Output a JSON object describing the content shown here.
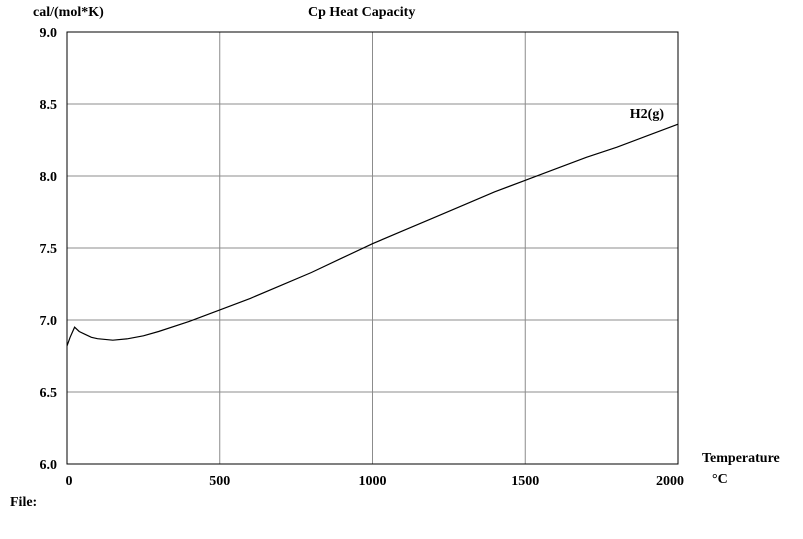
{
  "chart_data": {
    "type": "line",
    "title": "Cp Heat Capacity",
    "ylabel": "cal/(mol*K)",
    "xlabel": "Temperature",
    "xunit": "°C",
    "xlim": [
      0,
      2000
    ],
    "ylim": [
      6.0,
      9.0
    ],
    "xticks": [
      "0",
      "500",
      "1000",
      "1500",
      "2000"
    ],
    "yticks": [
      "6.0",
      "6.5",
      "7.0",
      "7.5",
      "8.0",
      "8.5",
      "9.0"
    ],
    "grid": true,
    "series": [
      {
        "name": "H2(g)",
        "color": "#000000",
        "points": [
          [
            0,
            6.82
          ],
          [
            10,
            6.88
          ],
          [
            25,
            6.95
          ],
          [
            40,
            6.92
          ],
          [
            60,
            6.9
          ],
          [
            80,
            6.88
          ],
          [
            100,
            6.87
          ],
          [
            150,
            6.86
          ],
          [
            200,
            6.87
          ],
          [
            250,
            6.89
          ],
          [
            300,
            6.92
          ],
          [
            400,
            6.99
          ],
          [
            500,
            7.07
          ],
          [
            600,
            7.15
          ],
          [
            700,
            7.24
          ],
          [
            800,
            7.33
          ],
          [
            900,
            7.43
          ],
          [
            1000,
            7.53
          ],
          [
            1100,
            7.62
          ],
          [
            1200,
            7.71
          ],
          [
            1300,
            7.8
          ],
          [
            1400,
            7.89
          ],
          [
            1500,
            7.97
          ],
          [
            1600,
            8.05
          ],
          [
            1700,
            8.13
          ],
          [
            1800,
            8.2
          ],
          [
            1900,
            8.28
          ],
          [
            2000,
            8.36
          ]
        ]
      }
    ]
  },
  "footer": {
    "file_label": "File:"
  }
}
